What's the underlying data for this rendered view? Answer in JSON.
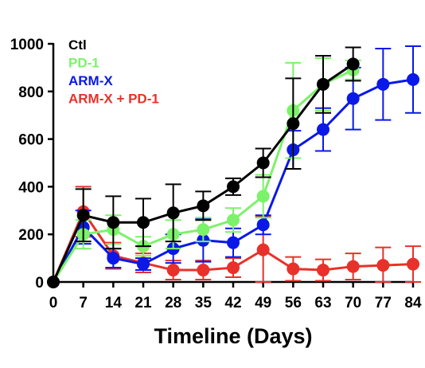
{
  "chart_data": {
    "type": "line",
    "xlabel": "Timeline (Days)",
    "ylabel": "",
    "title": "",
    "x_ticks": [
      0,
      7,
      14,
      21,
      28,
      35,
      42,
      49,
      56,
      63,
      70,
      77,
      84
    ],
    "y_ticks": [
      0,
      200,
      400,
      600,
      800,
      1000
    ],
    "xlim": [
      0,
      84
    ],
    "ylim": [
      0,
      1000
    ],
    "grid": false,
    "legend_position": "top-left",
    "series": [
      {
        "name": "Ctl",
        "color": "#000000",
        "x": [
          0,
          7,
          14,
          21,
          28,
          35,
          42,
          49,
          56,
          63,
          70
        ],
        "y": [
          0,
          280,
          250,
          250,
          290,
          320,
          400,
          500,
          665,
          830,
          915
        ],
        "err": [
          0,
          110,
          110,
          100,
          120,
          60,
          35,
          60,
          190,
          120,
          70
        ]
      },
      {
        "name": "PD-1",
        "color": "#7CF26A",
        "x": [
          0,
          7,
          14,
          21,
          28,
          35,
          42,
          49,
          56,
          63,
          70
        ],
        "y": [
          0,
          200,
          220,
          150,
          200,
          220,
          260,
          360,
          720,
          830,
          890
        ],
        "err": [
          0,
          60,
          60,
          40,
          60,
          50,
          50,
          90,
          200,
          110,
          40
        ]
      },
      {
        "name": "ARM-X",
        "color": "#0A18E8",
        "x": [
          0,
          7,
          14,
          21,
          28,
          35,
          42,
          49,
          56,
          63,
          70,
          77,
          84
        ],
        "y": [
          0,
          230,
          100,
          75,
          140,
          175,
          165,
          240,
          555,
          640,
          770,
          830,
          850
        ],
        "err": [
          0,
          70,
          40,
          25,
          60,
          90,
          60,
          40,
          80,
          90,
          130,
          150,
          140
        ]
      },
      {
        "name": "ARM-X + PD-1",
        "color": "#E8312A",
        "x": [
          0,
          7,
          14,
          21,
          28,
          35,
          42,
          49,
          56,
          63,
          70,
          77,
          84
        ],
        "y": [
          0,
          295,
          110,
          80,
          50,
          50,
          60,
          135,
          55,
          50,
          65,
          70,
          75
        ],
        "err": [
          0,
          105,
          55,
          40,
          40,
          40,
          40,
          140,
          50,
          45,
          55,
          75,
          75
        ]
      }
    ]
  }
}
